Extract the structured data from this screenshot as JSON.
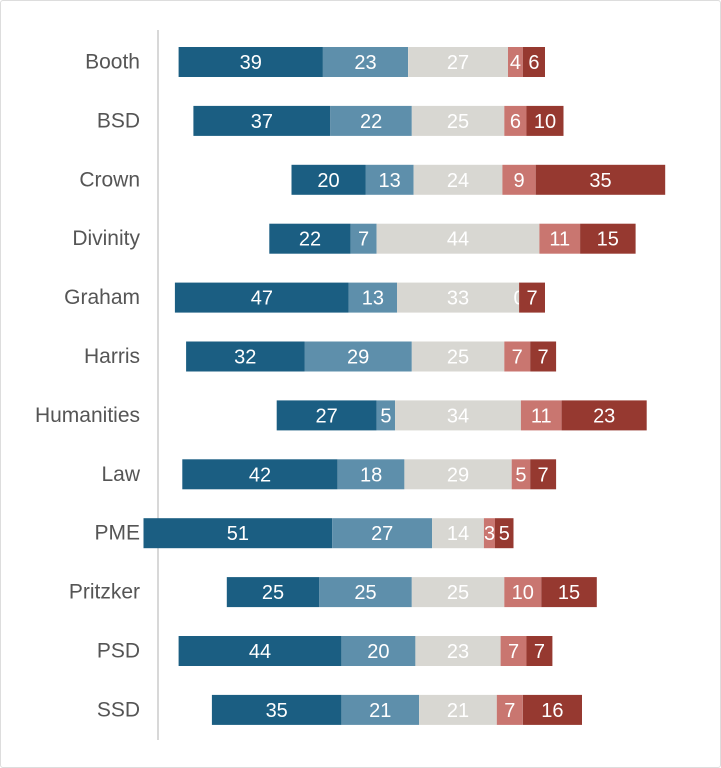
{
  "chart_data": {
    "type": "bar",
    "orientation": "horizontal",
    "stacked": true,
    "diverging": true,
    "categories": [
      "Booth",
      "BSD",
      "Crown",
      "Divinity",
      "Graham",
      "Harris",
      "Humanities",
      "Law",
      "PME",
      "Pritzker",
      "PSD",
      "SSD"
    ],
    "series": [
      {
        "values": [
          39,
          37,
          20,
          22,
          47,
          32,
          27,
          42,
          51,
          25,
          44,
          35
        ],
        "color": "#1b5e82"
      },
      {
        "values": [
          23,
          22,
          13,
          7,
          13,
          29,
          5,
          18,
          27,
          25,
          20,
          21
        ],
        "color": "#5e8fab"
      },
      {
        "values": [
          27,
          25,
          24,
          44,
          33,
          25,
          34,
          29,
          14,
          25,
          23,
          21
        ],
        "color": "#d8d7d2"
      },
      {
        "values": [
          4,
          6,
          9,
          11,
          0,
          7,
          11,
          5,
          3,
          10,
          7,
          7
        ],
        "color": "#c97670"
      },
      {
        "values": [
          6,
          10,
          35,
          15,
          7,
          7,
          23,
          7,
          5,
          15,
          7,
          16
        ],
        "color": "#963930"
      }
    ],
    "grid": false,
    "legend": "none",
    "title": "",
    "xlabel": "",
    "ylabel": ""
  }
}
